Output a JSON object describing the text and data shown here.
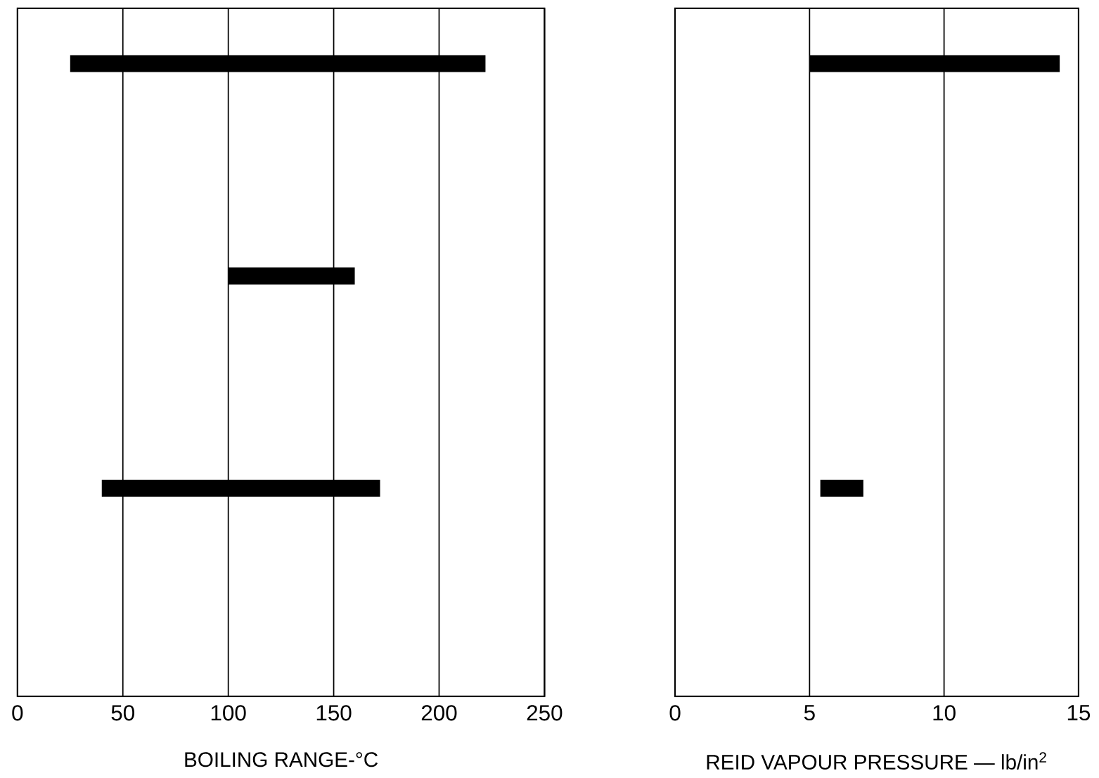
{
  "chart_data": [
    {
      "type": "bar",
      "orientation": "horizontal",
      "xlabel": "BOILING RANGE-°C",
      "categories": [
        null,
        null,
        null
      ],
      "base": [
        25,
        100,
        40
      ],
      "values": [
        197,
        60,
        132
      ],
      "color": "#000000",
      "xlim": [
        0,
        250
      ],
      "xticks": [
        0,
        50,
        100,
        150,
        200,
        250
      ],
      "grid": "x",
      "tick_labels": "x"
    },
    {
      "type": "bar",
      "orientation": "horizontal",
      "xlabel": "REID VAPOUR PRESSURE — lb/in$^{2}$",
      "categories": [
        null,
        null,
        null
      ],
      "base": [
        5,
        null,
        5.4
      ],
      "values": [
        9.3,
        null,
        1.6
      ],
      "color": "#000000",
      "xlim": [
        0,
        15
      ],
      "xticks": [
        0,
        5,
        10,
        15
      ],
      "grid": "x",
      "tick_labels": "x"
    }
  ]
}
